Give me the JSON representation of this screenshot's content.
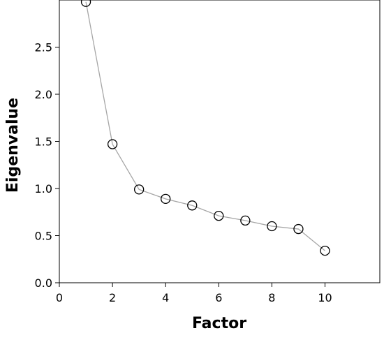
{
  "chart_data": {
    "type": "line",
    "title": "",
    "xlabel": "Factor",
    "ylabel": "Eigenvalue",
    "xlim": [
      0,
      12
    ],
    "ylim": [
      0,
      3.0
    ],
    "x_ticks": [
      0,
      2,
      4,
      6,
      8,
      10
    ],
    "x_tick_labels": [
      "0",
      "2",
      "4",
      "6",
      "8",
      "10"
    ],
    "y_ticks": [
      0.0,
      0.5,
      1.0,
      1.5,
      2.0,
      2.5
    ],
    "y_tick_labels": [
      "0.0",
      "0.5",
      "1.0",
      "1.5",
      "2.0",
      "2.5"
    ],
    "grid": false,
    "legend": "none",
    "series": [
      {
        "x": [
          1,
          2,
          3,
          4,
          5,
          6,
          7,
          8,
          9,
          10
        ],
        "values": [
          2.98,
          1.47,
          0.99,
          0.89,
          0.82,
          0.71,
          0.66,
          0.6,
          0.57,
          0.34
        ],
        "line_color": "#a6a6a6",
        "marker": "open-circle",
        "marker_color": "#000000"
      }
    ]
  }
}
